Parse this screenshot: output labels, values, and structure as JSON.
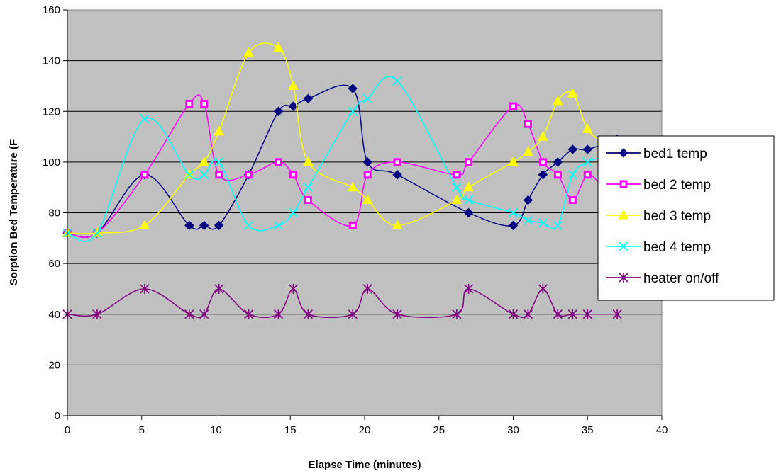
{
  "chart_data": {
    "type": "line",
    "title": "",
    "xlabel": "Elapse Time (minutes)",
    "ylabel": "Sorption Bed Temperature (F",
    "xlim": [
      0,
      40
    ],
    "ylim": [
      0,
      160
    ],
    "x_ticks": [
      0,
      5,
      10,
      15,
      20,
      25,
      30,
      35,
      40
    ],
    "y_ticks": [
      0,
      20,
      40,
      60,
      80,
      100,
      120,
      140,
      160
    ],
    "grid": "horizontal",
    "legend_position": "right",
    "plot_background": "#C0C0C0",
    "series": [
      {
        "name": "bed1 temp",
        "color": "#000080",
        "marker": "diamond",
        "points": [
          [
            0,
            72
          ],
          [
            2,
            72
          ],
          [
            5.2,
            95
          ],
          [
            8.2,
            75
          ],
          [
            9.2,
            75
          ],
          [
            10.2,
            75
          ],
          [
            12.2,
            95
          ],
          [
            14.2,
            120
          ],
          [
            15.2,
            122
          ],
          [
            16.2,
            125
          ],
          [
            19.2,
            129
          ],
          [
            20.2,
            100
          ],
          [
            22.2,
            95
          ],
          [
            27.0,
            80
          ],
          [
            30.0,
            75
          ],
          [
            31.0,
            85
          ],
          [
            32.0,
            95
          ],
          [
            33.0,
            100
          ],
          [
            34.0,
            105
          ],
          [
            35.0,
            105
          ],
          [
            37.0,
            109
          ]
        ]
      },
      {
        "name": "bed 2 temp",
        "color": "#FF00FF",
        "marker": "square",
        "points": [
          [
            0,
            72
          ],
          [
            2,
            72
          ],
          [
            5.2,
            95
          ],
          [
            8.2,
            123
          ],
          [
            9.2,
            123
          ],
          [
            10.2,
            95
          ],
          [
            12.2,
            95
          ],
          [
            14.2,
            100
          ],
          [
            15.2,
            95
          ],
          [
            16.2,
            85
          ],
          [
            19.2,
            75
          ],
          [
            20.2,
            95
          ],
          [
            22.2,
            100
          ],
          [
            26.2,
            95
          ],
          [
            27.0,
            100
          ],
          [
            30.0,
            122
          ],
          [
            31.0,
            115
          ],
          [
            32.0,
            100
          ],
          [
            33.0,
            95
          ],
          [
            34.0,
            85
          ],
          [
            35.0,
            95
          ],
          [
            36.0,
            90
          ]
        ]
      },
      {
        "name": "bed 3 temp",
        "color": "#FFFF00",
        "marker": "triangle",
        "points": [
          [
            0,
            72
          ],
          [
            2,
            72
          ],
          [
            5.2,
            75
          ],
          [
            8.2,
            95
          ],
          [
            9.2,
            100
          ],
          [
            10.2,
            112
          ],
          [
            12.2,
            143
          ],
          [
            14.2,
            145
          ],
          [
            15.2,
            130
          ],
          [
            16.2,
            100
          ],
          [
            19.2,
            90
          ],
          [
            20.2,
            85
          ],
          [
            22.2,
            75
          ],
          [
            26.2,
            85
          ],
          [
            27.0,
            90
          ],
          [
            30.0,
            100
          ],
          [
            31.0,
            104
          ],
          [
            32.0,
            110
          ],
          [
            33.0,
            124
          ],
          [
            34.0,
            127
          ],
          [
            35.0,
            113
          ],
          [
            36.0,
            108
          ]
        ]
      },
      {
        "name": "bed 4 temp",
        "color": "#00FFFF",
        "marker": "x",
        "points": [
          [
            0,
            72
          ],
          [
            2,
            72
          ],
          [
            5.2,
            117
          ],
          [
            8.2,
            95
          ],
          [
            9.2,
            95
          ],
          [
            10.2,
            100
          ],
          [
            12.2,
            75
          ],
          [
            14.2,
            75
          ],
          [
            15.2,
            80
          ],
          [
            16.2,
            90
          ],
          [
            19.2,
            120
          ],
          [
            20.2,
            125
          ],
          [
            22.2,
            132
          ],
          [
            26.2,
            90
          ],
          [
            27.0,
            85
          ],
          [
            30.0,
            80
          ],
          [
            31.0,
            77
          ],
          [
            32.0,
            76
          ],
          [
            33.0,
            75
          ],
          [
            34.0,
            95
          ],
          [
            35.0,
            100
          ],
          [
            36.0,
            102
          ]
        ]
      },
      {
        "name": "heater on/off",
        "color": "#800080",
        "marker": "star",
        "points": [
          [
            0,
            40
          ],
          [
            2,
            40
          ],
          [
            5.2,
            50
          ],
          [
            8.2,
            40
          ],
          [
            9.2,
            40
          ],
          [
            10.2,
            50
          ],
          [
            12.2,
            40
          ],
          [
            14.2,
            40
          ],
          [
            15.2,
            50
          ],
          [
            16.2,
            40
          ],
          [
            19.2,
            40
          ],
          [
            20.2,
            50
          ],
          [
            22.2,
            40
          ],
          [
            26.2,
            40
          ],
          [
            27.0,
            50
          ],
          [
            30.0,
            40
          ],
          [
            31.0,
            40
          ],
          [
            32.0,
            50
          ],
          [
            33.0,
            40
          ],
          [
            34.0,
            40
          ],
          [
            35.0,
            40
          ],
          [
            37.0,
            40
          ]
        ]
      }
    ]
  }
}
